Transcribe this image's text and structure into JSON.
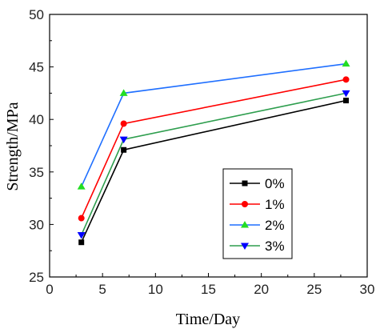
{
  "chart_data": {
    "type": "line",
    "title": "",
    "xlabel": "Time/Day",
    "ylabel": "Strength/MPa",
    "xlim": [
      0,
      30
    ],
    "ylim": [
      25,
      50
    ],
    "xticks": [
      "0",
      "5",
      "10",
      "15",
      "20",
      "25",
      "30"
    ],
    "yticks": [
      "25",
      "30",
      "35",
      "40",
      "45",
      "50"
    ],
    "x": [
      3,
      7,
      28
    ],
    "grid": false,
    "legend_position": "bottom-right",
    "series": [
      {
        "name": "0%",
        "values": [
          28.3,
          37.1,
          41.8
        ],
        "color": "#000000",
        "marker": "square"
      },
      {
        "name": "1%",
        "values": [
          30.6,
          39.6,
          43.8
        ],
        "color": "#ff0000",
        "marker": "circle"
      },
      {
        "name": "2%",
        "values": [
          33.6,
          42.5,
          45.3
        ],
        "color": "#1f6fff",
        "marker": "triangle-up",
        "marker_color": "#22dd22"
      },
      {
        "name": "3%",
        "values": [
          29.0,
          38.1,
          42.5
        ],
        "color": "#2e9e4e",
        "marker": "triangle-down",
        "marker_color": "#0000ff"
      }
    ]
  }
}
